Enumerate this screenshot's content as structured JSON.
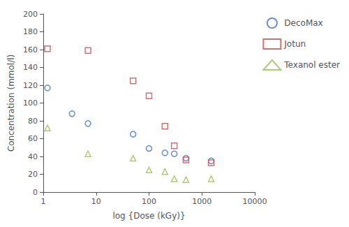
{
  "chart_data": {
    "type": "scatter",
    "xlabel": "log {Dose (kGy)}",
    "ylabel": "Concentration (mmol/l)",
    "log": "x",
    "xlim": [
      1,
      10000
    ],
    "xticks": [
      1,
      10,
      100,
      1000,
      10000
    ],
    "ylim": [
      0,
      200
    ],
    "yticks": [
      0,
      20,
      40,
      60,
      80,
      100,
      120,
      140,
      160,
      180,
      200
    ],
    "grid": false,
    "legend": "right",
    "series": [
      {
        "name": "DecoMax",
        "color": "#4472C4",
        "marker": "circle",
        "x": [
          1.2,
          3.5,
          7,
          50,
          100,
          200,
          300,
          500,
          1500
        ],
        "values": [
          117,
          88,
          77,
          65,
          49,
          44,
          43,
          38,
          35
        ]
      },
      {
        "name": "Jotun",
        "color": "#C0504D",
        "marker": "square",
        "x": [
          1.2,
          7,
          50,
          100,
          200,
          300,
          500,
          1500
        ],
        "values": [
          161,
          159,
          125,
          108,
          74,
          52,
          36,
          33
        ]
      },
      {
        "name": "Texanol ester",
        "color": "#9BBB59",
        "marker": "triangle",
        "x": [
          1.2,
          7,
          50,
          100,
          200,
          300,
          500,
          1500
        ],
        "values": [
          72,
          43,
          38,
          25,
          23,
          15,
          14,
          15
        ]
      }
    ]
  }
}
